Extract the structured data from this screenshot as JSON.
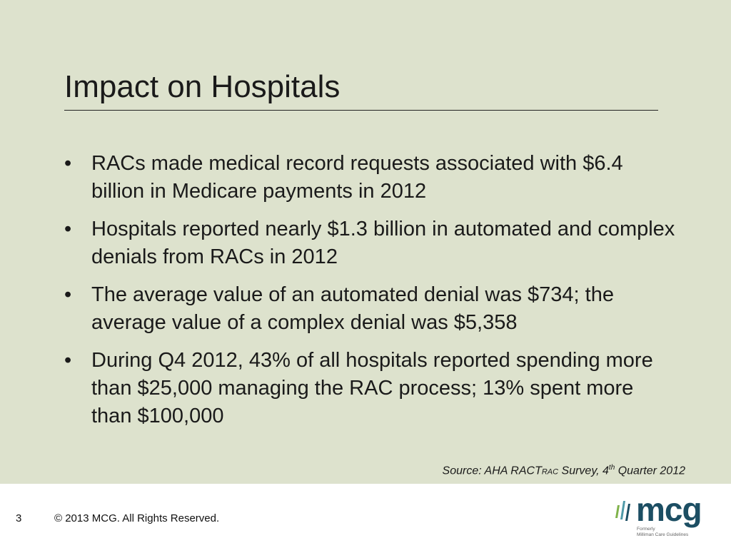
{
  "slide": {
    "title": "Impact on Hospitals",
    "bullets": [
      "RACs made medical record requests associated with $6.4 billion in Medicare payments in 2012",
      "Hospitals reported nearly $1.3 billion in automated and complex denials from RACs in 2012",
      "The average value of an automated denial was $734; the average value of a complex denial was $5,358",
      "During Q4 2012, 43% of all hospitals reported spending more than $25,000 managing the RAC process; 13% spent more than $100,000"
    ],
    "source": {
      "prefix": "Source: AHA RACT",
      "smallcaps": "RAC",
      "middle": " Survey, 4",
      "sup": "th",
      "suffix": " Quarter 2012"
    }
  },
  "footer": {
    "page_number": "3",
    "copyright": "© 2013 MCG. All Rights Reserved."
  },
  "logo": {
    "text": "mcg",
    "subtitle_line1": "Formerly",
    "subtitle_line2": "Milliman Care Guidelines",
    "color": "#1c4e63",
    "accent": "#7fb24a"
  }
}
